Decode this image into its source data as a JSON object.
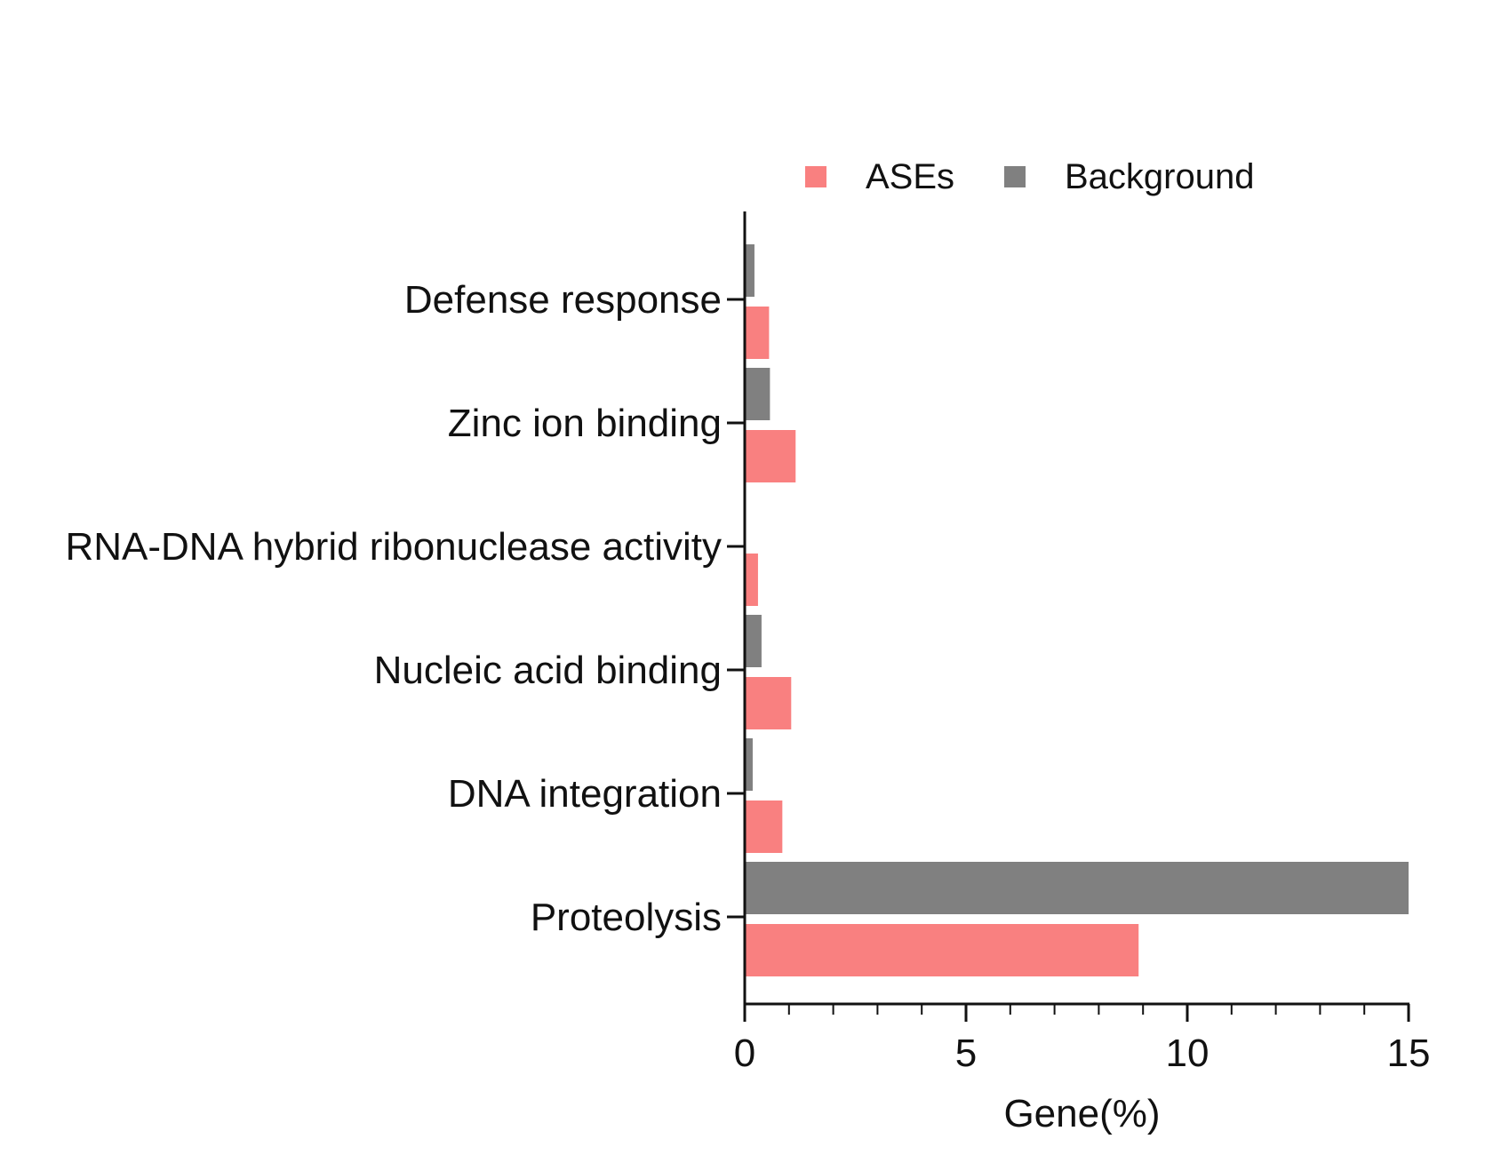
{
  "chart_data": {
    "type": "bar",
    "orientation": "horizontal",
    "categories": [
      "Defense response",
      "Zinc ion binding",
      "RNA-DNA hybrid ribonuclease activity",
      "Nucleic acid binding",
      "DNA integration",
      "Proteolysis"
    ],
    "series": [
      {
        "name": "ASEs",
        "color": "#F98080",
        "values": [
          0.55,
          1.15,
          0.3,
          1.05,
          0.85,
          8.9
        ]
      },
      {
        "name": "Background",
        "color": "#808080",
        "values": [
          0.22,
          0.57,
          0.0,
          0.38,
          0.18,
          15.0
        ]
      }
    ],
    "xlabel": "Gene(%)",
    "ylabel": "",
    "xlim": [
      0,
      15
    ],
    "major_ticks": [
      0,
      5,
      10,
      15
    ],
    "tick_labels": [
      "0",
      "5",
      "10",
      "15"
    ],
    "minor_tick_step": 1,
    "grid": false,
    "legend_position": "top"
  }
}
